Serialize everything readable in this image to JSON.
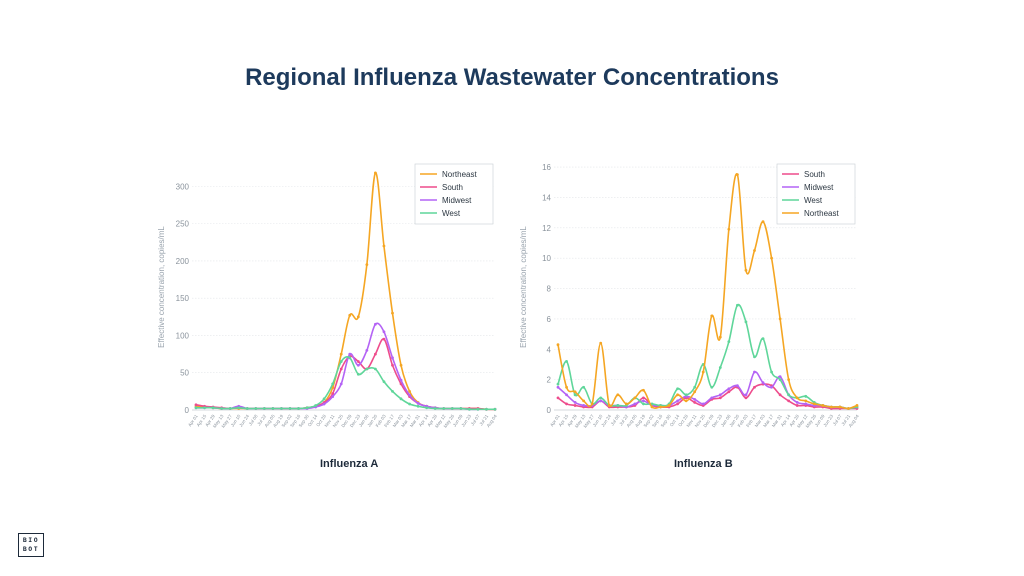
{
  "page": {
    "title": "Regional Influenza Wastewater Concentrations"
  },
  "logo": {
    "line1": "BIO",
    "line2": "BOT"
  },
  "chart_data": [
    {
      "type": "line",
      "title": "Influenza A",
      "ylabel": "Effective concentration, copies/mL",
      "ylim": [
        0,
        330
      ],
      "yticks": [
        0,
        50,
        100,
        150,
        200,
        250,
        300
      ],
      "legend_position": "top-right",
      "x": [
        "Apr 01",
        "Apr 15",
        "Apr 29",
        "May 13",
        "May 27",
        "Jun 10",
        "Jun 24",
        "Jul 08",
        "Jul 22",
        "Aug 05",
        "Aug 19",
        "Sep 02",
        "Sep 16",
        "Sep 30",
        "Oct 14",
        "Oct 28",
        "Nov 11",
        "Nov 25",
        "Dec 09",
        "Dec 23",
        "Jan 06",
        "Jan 20",
        "Feb 03",
        "Feb 17",
        "Mar 03",
        "Mar 17",
        "Mar 31",
        "Apr 14",
        "Apr 28",
        "May 12",
        "May 26",
        "Jun 09",
        "Jun 23",
        "Jul 07",
        "Jul 21",
        "Aug 04"
      ],
      "series": [
        {
          "name": "Northeast",
          "color": "#f5a623",
          "values": [
            5,
            4,
            3,
            2,
            2,
            2,
            2,
            2,
            2,
            2,
            2,
            2,
            2,
            3,
            5,
            10,
            30,
            75,
            127,
            125,
            195,
            318,
            220,
            130,
            60,
            25,
            10,
            5,
            3,
            2,
            2,
            2,
            2,
            2,
            1,
            1
          ]
        },
        {
          "name": "South",
          "color": "#ee4c8c",
          "values": [
            7,
            5,
            4,
            3,
            2,
            3,
            2,
            2,
            2,
            2,
            2,
            2,
            2,
            3,
            5,
            10,
            22,
            55,
            72,
            65,
            55,
            75,
            95,
            60,
            35,
            18,
            9,
            5,
            3,
            2,
            2,
            2,
            2,
            2,
            1,
            1
          ]
        },
        {
          "name": "Midwest",
          "color": "#b463f5",
          "values": [
            3,
            3,
            3,
            2,
            2,
            5,
            2,
            2,
            2,
            2,
            2,
            2,
            2,
            2,
            4,
            8,
            18,
            35,
            75,
            60,
            80,
            115,
            105,
            70,
            40,
            20,
            9,
            5,
            3,
            2,
            2,
            2,
            1,
            1,
            1,
            1
          ]
        },
        {
          "name": "West",
          "color": "#5fd69a",
          "values": [
            3,
            3,
            3,
            2,
            2,
            3,
            2,
            2,
            2,
            2,
            2,
            2,
            2,
            3,
            6,
            15,
            35,
            65,
            70,
            48,
            55,
            55,
            38,
            25,
            15,
            8,
            5,
            3,
            2,
            2,
            2,
            2,
            1,
            1,
            1,
            1
          ]
        }
      ]
    },
    {
      "type": "line",
      "title": "Influenza B",
      "ylabel": "Effective concentration, copies/mL",
      "ylim": [
        0,
        16.2
      ],
      "yticks": [
        0,
        2,
        4,
        6,
        8,
        10,
        12,
        14,
        16
      ],
      "legend_position": "top-right",
      "x": [
        "Apr 01",
        "Apr 15",
        "Apr 29",
        "May 13",
        "May 27",
        "Jun 10",
        "Jun 24",
        "Jul 08",
        "Jul 22",
        "Aug 05",
        "Aug 19",
        "Sep 02",
        "Sep 16",
        "Sep 30",
        "Oct 14",
        "Oct 28",
        "Nov 11",
        "Nov 25",
        "Dec 09",
        "Dec 23",
        "Jan 06",
        "Jan 20",
        "Feb 03",
        "Feb 17",
        "Mar 03",
        "Mar 17",
        "Mar 31",
        "Apr 14",
        "Apr 28",
        "May 12",
        "May 26",
        "Jun 09",
        "Jun 23",
        "Jul 07",
        "Jul 21",
        "Aug 04"
      ],
      "series": [
        {
          "name": "South",
          "color": "#ee4c8c",
          "values": [
            0.8,
            0.4,
            0.3,
            0.2,
            0.2,
            0.6,
            0.2,
            0.2,
            0.2,
            0.3,
            0.8,
            0.3,
            0.2,
            0.2,
            0.4,
            0.8,
            0.5,
            0.3,
            0.7,
            0.8,
            1.2,
            1.5,
            0.8,
            1.5,
            1.7,
            1.6,
            1.0,
            0.6,
            0.3,
            0.3,
            0.2,
            0.2,
            0.1,
            0.1,
            0.1,
            0.1
          ]
        },
        {
          "name": "Midwest",
          "color": "#b463f5",
          "values": [
            1.5,
            1.0,
            0.5,
            0.3,
            0.3,
            0.6,
            0.3,
            0.3,
            0.2,
            0.4,
            0.6,
            0.3,
            0.3,
            0.3,
            0.6,
            0.9,
            0.7,
            0.4,
            0.8,
            1.0,
            1.4,
            1.6,
            1.0,
            2.5,
            1.8,
            1.5,
            2.2,
            1.0,
            0.5,
            0.4,
            0.3,
            0.3,
            0.2,
            0.2,
            0.1,
            0.2
          ]
        },
        {
          "name": "West",
          "color": "#5fd69a",
          "values": [
            1.7,
            3.2,
            1.0,
            1.5,
            0.4,
            0.8,
            0.3,
            0.3,
            0.3,
            0.8,
            0.4,
            0.4,
            0.3,
            0.4,
            1.4,
            1.0,
            1.5,
            3.0,
            1.5,
            2.8,
            4.5,
            6.9,
            5.8,
            3.5,
            4.7,
            2.5,
            2.0,
            1.0,
            0.8,
            0.9,
            0.5,
            0.3,
            0.2,
            0.2,
            0.1,
            0.2
          ]
        },
        {
          "name": "Northeast",
          "color": "#f5a623",
          "values": [
            4.3,
            1.5,
            1.2,
            0.6,
            0.4,
            4.4,
            0.3,
            1.0,
            0.4,
            0.8,
            1.3,
            0.2,
            0.2,
            0.3,
            1.0,
            0.6,
            1.2,
            2.5,
            6.2,
            4.8,
            11.9,
            15.5,
            9.2,
            10.5,
            12.4,
            10.0,
            6.0,
            2.0,
            0.8,
            0.6,
            0.4,
            0.3,
            0.2,
            0.2,
            0.1,
            0.3
          ]
        }
      ]
    }
  ]
}
